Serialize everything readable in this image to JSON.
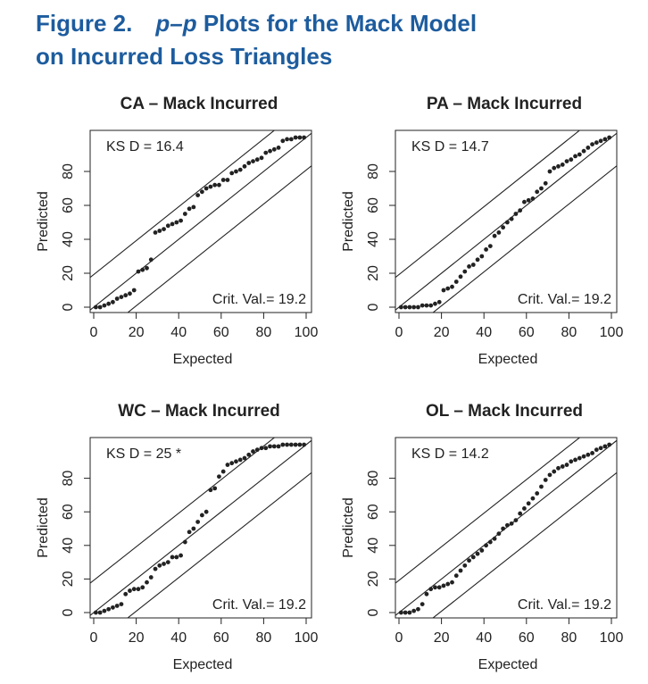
{
  "figure": {
    "number_label": "Figure 2.",
    "title_italic": "p–p",
    "title_rest": " Plots for the Mack Model",
    "title_line2": "on Incurred Loss Triangles"
  },
  "chart_data": [
    {
      "type": "scatter",
      "title": "CA – Mack Incurred",
      "xlabel": "Expected",
      "ylabel": "Predicted",
      "ks_label": "KS D = 16.4",
      "crit_label": "Crit. Val.= 19.2",
      "crit_value": 19.2,
      "xlim": [
        0,
        100
      ],
      "ylim": [
        0,
        100
      ],
      "xticks": [
        "0",
        "20",
        "40",
        "60",
        "80",
        "100"
      ],
      "yticks": [
        "0",
        "20",
        "40",
        "60",
        "80"
      ],
      "x": [
        1,
        3,
        5,
        7,
        9,
        11,
        13,
        15,
        17,
        19,
        21,
        23,
        25,
        27,
        29,
        31,
        33,
        35,
        37,
        39,
        41,
        43,
        45,
        47,
        49,
        51,
        53,
        55,
        57,
        59,
        61,
        63,
        65,
        67,
        69,
        71,
        73,
        75,
        77,
        79,
        81,
        83,
        85,
        87,
        89,
        91,
        93,
        95,
        97,
        99
      ],
      "y": [
        0,
        0,
        1,
        2,
        3,
        5,
        6,
        7,
        8,
        10,
        21,
        22,
        23,
        28,
        44,
        45,
        46,
        48,
        49,
        50,
        51,
        55,
        58,
        59,
        66,
        68,
        70,
        71,
        72,
        72,
        75,
        75,
        79,
        80,
        81,
        83,
        85,
        86,
        87,
        88,
        91,
        92,
        93,
        94,
        98,
        99,
        99,
        100,
        100,
        100
      ]
    },
    {
      "type": "scatter",
      "title": "PA – Mack Incurred",
      "xlabel": "Expected",
      "ylabel": "Predicted",
      "ks_label": "KS D = 14.7",
      "crit_label": "Crit. Val.= 19.2",
      "crit_value": 19.2,
      "xlim": [
        0,
        100
      ],
      "ylim": [
        0,
        100
      ],
      "xticks": [
        "0",
        "20",
        "40",
        "60",
        "80",
        "100"
      ],
      "yticks": [
        "0",
        "20",
        "40",
        "60",
        "80"
      ],
      "x": [
        1,
        3,
        5,
        7,
        9,
        11,
        13,
        15,
        17,
        19,
        21,
        23,
        25,
        27,
        29,
        31,
        33,
        35,
        37,
        39,
        41,
        43,
        45,
        47,
        49,
        51,
        53,
        55,
        57,
        59,
        61,
        63,
        65,
        67,
        69,
        71,
        73,
        75,
        77,
        79,
        81,
        83,
        85,
        87,
        89,
        91,
        93,
        95,
        97,
        99
      ],
      "y": [
        0,
        0,
        0,
        0,
        0,
        1,
        1,
        1,
        2,
        3,
        10,
        11,
        12,
        15,
        18,
        21,
        24,
        25,
        28,
        30,
        34,
        36,
        42,
        44,
        47,
        50,
        52,
        55,
        57,
        62,
        63,
        64,
        68,
        70,
        73,
        80,
        82,
        83,
        84,
        86,
        87,
        89,
        90,
        92,
        94,
        96,
        97,
        98,
        99,
        100
      ]
    },
    {
      "type": "scatter",
      "title": "WC – Mack Incurred",
      "xlabel": "Expected",
      "ylabel": "Predicted",
      "ks_label": "KS D = 25 *",
      "crit_label": "Crit. Val.= 19.2",
      "crit_value": 19.2,
      "xlim": [
        0,
        100
      ],
      "ylim": [
        0,
        100
      ],
      "xticks": [
        "0",
        "20",
        "40",
        "60",
        "80",
        "100"
      ],
      "yticks": [
        "0",
        "20",
        "40",
        "60",
        "80"
      ],
      "x": [
        1,
        3,
        5,
        7,
        9,
        11,
        13,
        15,
        17,
        19,
        21,
        23,
        25,
        27,
        29,
        31,
        33,
        35,
        37,
        39,
        41,
        43,
        45,
        47,
        49,
        51,
        53,
        55,
        57,
        59,
        61,
        63,
        65,
        67,
        69,
        71,
        73,
        75,
        77,
        79,
        81,
        83,
        85,
        87,
        89,
        91,
        93,
        95,
        97,
        99
      ],
      "y": [
        0,
        0,
        1,
        2,
        3,
        4,
        5,
        11,
        13,
        14,
        14,
        15,
        18,
        21,
        26,
        28,
        29,
        30,
        33,
        33,
        34,
        42,
        48,
        50,
        54,
        58,
        60,
        73,
        74,
        81,
        84,
        88,
        89,
        90,
        91,
        92,
        94,
        96,
        97,
        98,
        98,
        99,
        99,
        99,
        100,
        100,
        100,
        100,
        100,
        100
      ]
    },
    {
      "type": "scatter",
      "title": "OL – Mack Incurred",
      "xlabel": "Expected",
      "ylabel": "Predicted",
      "ks_label": "KS D = 14.2",
      "crit_label": "Crit. Val.= 19.2",
      "crit_value": 19.2,
      "xlim": [
        0,
        100
      ],
      "ylim": [
        0,
        100
      ],
      "xticks": [
        "0",
        "20",
        "40",
        "60",
        "80",
        "100"
      ],
      "yticks": [
        "0",
        "20",
        "40",
        "60",
        "80"
      ],
      "x": [
        1,
        3,
        5,
        7,
        9,
        11,
        13,
        15,
        17,
        19,
        21,
        23,
        25,
        27,
        29,
        31,
        33,
        35,
        37,
        39,
        41,
        43,
        45,
        47,
        49,
        51,
        53,
        55,
        57,
        59,
        61,
        63,
        65,
        67,
        69,
        71,
        73,
        75,
        77,
        79,
        81,
        83,
        85,
        87,
        89,
        91,
        93,
        95,
        97,
        99
      ],
      "y": [
        0,
        0,
        0,
        1,
        2,
        5,
        11,
        14,
        15,
        15,
        16,
        17,
        18,
        22,
        25,
        28,
        31,
        33,
        35,
        37,
        40,
        42,
        44,
        47,
        50,
        52,
        53,
        55,
        59,
        62,
        65,
        68,
        71,
        75,
        79,
        82,
        84,
        86,
        87,
        88,
        90,
        91,
        92,
        93,
        94,
        95,
        97,
        98,
        99,
        100
      ]
    }
  ]
}
